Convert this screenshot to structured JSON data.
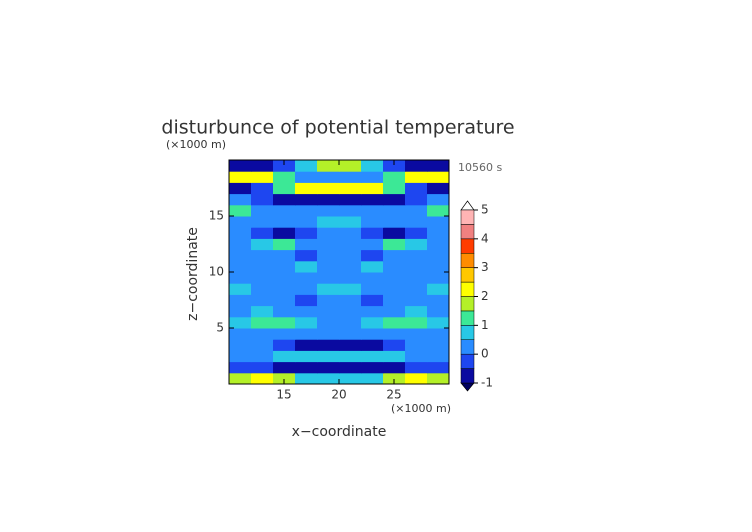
{
  "chart_data": {
    "type": "heatmap",
    "title": "disturbunce of potential temperature",
    "time_label": "10560 s",
    "x_label": "x−coordinate",
    "y_label": "z−coordinate",
    "x_unit": "(×1000 m)",
    "y_unit": "(×1000 m)",
    "xlim": [
      10,
      30
    ],
    "ylim": [
      0,
      20
    ],
    "xticks": [
      15,
      20,
      25
    ],
    "yticks": [
      5,
      10,
      15
    ],
    "x": [
      11,
      13,
      15,
      17,
      19,
      21,
      23,
      25,
      27,
      29
    ],
    "y": [
      0.5,
      1.5,
      2.5,
      3.5,
      4.5,
      5.5,
      6.5,
      7.5,
      8.5,
      9.5,
      10.5,
      11.5,
      12.5,
      13.5,
      14.5,
      15.5,
      16.5,
      17.5,
      18.5,
      19.5
    ],
    "z": [
      [
        1.8,
        2.2,
        1.6,
        0.8,
        0.6,
        0.6,
        0.8,
        1.6,
        2.2,
        1.8
      ],
      [
        -0.2,
        -0.4,
        -0.6,
        -0.7,
        -0.8,
        -0.8,
        -0.7,
        -0.6,
        -0.4,
        -0.2
      ],
      [
        0.3,
        0.4,
        0.6,
        0.8,
        0.8,
        0.8,
        0.8,
        0.6,
        0.4,
        0.3
      ],
      [
        0.2,
        0.1,
        -0.2,
        -0.6,
        -0.7,
        -0.7,
        -0.6,
        -0.2,
        0.1,
        0.2
      ],
      [
        0.3,
        0.3,
        0.4,
        0.3,
        0.2,
        0.2,
        0.3,
        0.4,
        0.3,
        0.3
      ],
      [
        0.6,
        1.2,
        1.3,
        0.7,
        0.4,
        0.4,
        0.7,
        1.3,
        1.2,
        0.6
      ],
      [
        0.3,
        0.6,
        0.4,
        0.2,
        0.3,
        0.3,
        0.2,
        0.4,
        0.6,
        0.3
      ],
      [
        0.2,
        0.2,
        0.1,
        -0.1,
        0.2,
        0.2,
        -0.1,
        0.1,
        0.2,
        0.2
      ],
      [
        0.6,
        0.3,
        0.2,
        0.3,
        0.7,
        0.7,
        0.3,
        0.2,
        0.3,
        0.6
      ],
      [
        0.2,
        0.1,
        0.2,
        0.3,
        0.3,
        0.3,
        0.3,
        0.2,
        0.1,
        0.2
      ],
      [
        0.3,
        0.2,
        0.1,
        0.6,
        0.3,
        0.3,
        0.6,
        0.1,
        0.2,
        0.3
      ],
      [
        0.2,
        0.4,
        0.2,
        -0.2,
        0.1,
        0.1,
        -0.2,
        0.2,
        0.4,
        0.2
      ],
      [
        0.3,
        0.6,
        1.1,
        0.4,
        0.3,
        0.3,
        0.4,
        1.1,
        0.6,
        0.3
      ],
      [
        0.1,
        -0.2,
        -0.6,
        -0.4,
        0.0,
        0.0,
        -0.4,
        -0.6,
        -0.2,
        0.1
      ],
      [
        0.4,
        0.3,
        0.2,
        0.4,
        0.6,
        0.6,
        0.4,
        0.2,
        0.3,
        0.4
      ],
      [
        1.2,
        0.4,
        0.3,
        0.2,
        0.3,
        0.3,
        0.2,
        0.3,
        0.4,
        1.2
      ],
      [
        0.2,
        -0.4,
        -0.6,
        -0.8,
        -0.9,
        -0.9,
        -0.8,
        -0.6,
        -0.4,
        0.2
      ],
      [
        -0.6,
        -0.2,
        1.2,
        2.0,
        2.3,
        2.3,
        2.0,
        1.2,
        -0.2,
        -0.6
      ],
      [
        2.2,
        2.4,
        1.4,
        0.4,
        0.2,
        0.2,
        0.4,
        1.4,
        2.4,
        2.2
      ],
      [
        -0.8,
        -0.7,
        -0.2,
        0.5,
        1.8,
        1.8,
        0.5,
        -0.2,
        -0.7,
        -0.8
      ]
    ],
    "levels": [
      -1,
      -0.5,
      0,
      0.5,
      1,
      1.5,
      2,
      2.5,
      3,
      3.5,
      4,
      4.5,
      5
    ],
    "colors": [
      "#0a0aa0",
      "#1e46f0",
      "#2a8cff",
      "#28c8e6",
      "#3ce896",
      "#b4f028",
      "#ffff00",
      "#ffc800",
      "#ff8c00",
      "#ff3c00",
      "#f08080",
      "#ffb4b4"
    ],
    "colorbar_ticks": [
      -1,
      0,
      1,
      2,
      3,
      4,
      5
    ]
  }
}
